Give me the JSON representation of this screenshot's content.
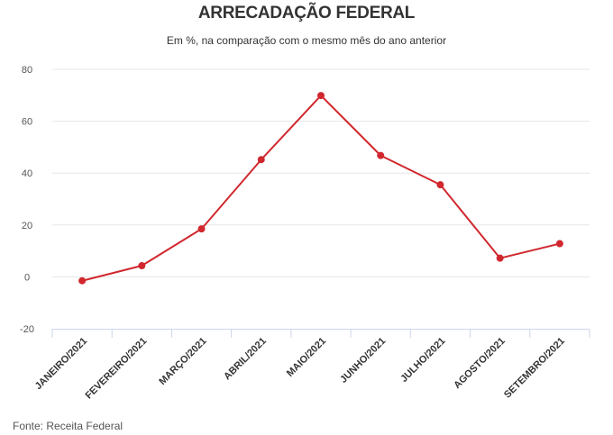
{
  "header": {
    "title": "ARRECADAÇÃO FEDERAL",
    "subtitle": "Em %, na comparação com o mesmo mês do ano anterior"
  },
  "footer": {
    "source": "Fonte: Receita Federal"
  },
  "colors": {
    "line": "#d0282e",
    "grid": "#e6e6e6",
    "axis": "#ccd6eb"
  },
  "chart_data": {
    "type": "line",
    "title": "ARRECADAÇÃO FEDERAL",
    "subtitle": "Em %, na comparação com o mesmo mês do ano anterior",
    "categories": [
      "JANEIRO/2021",
      "FEVEREIRO/2021",
      "MARÇO/2021",
      "ABRIL/2021",
      "MAIO/2021",
      "JUNHO/2021",
      "JULHO/2021",
      "AGOSTO/2021",
      "SETEMBRO/2021"
    ],
    "series": [
      {
        "values": [
          -1.5,
          4.3,
          18.5,
          45.2,
          69.9,
          46.8,
          35.5,
          7.2,
          12.8
        ]
      }
    ],
    "ylim": [
      -20,
      80
    ],
    "yticks": [
      -20,
      0,
      20,
      40,
      60,
      80
    ],
    "grid": true,
    "legend": "none",
    "xlabel": "",
    "ylabel": ""
  }
}
